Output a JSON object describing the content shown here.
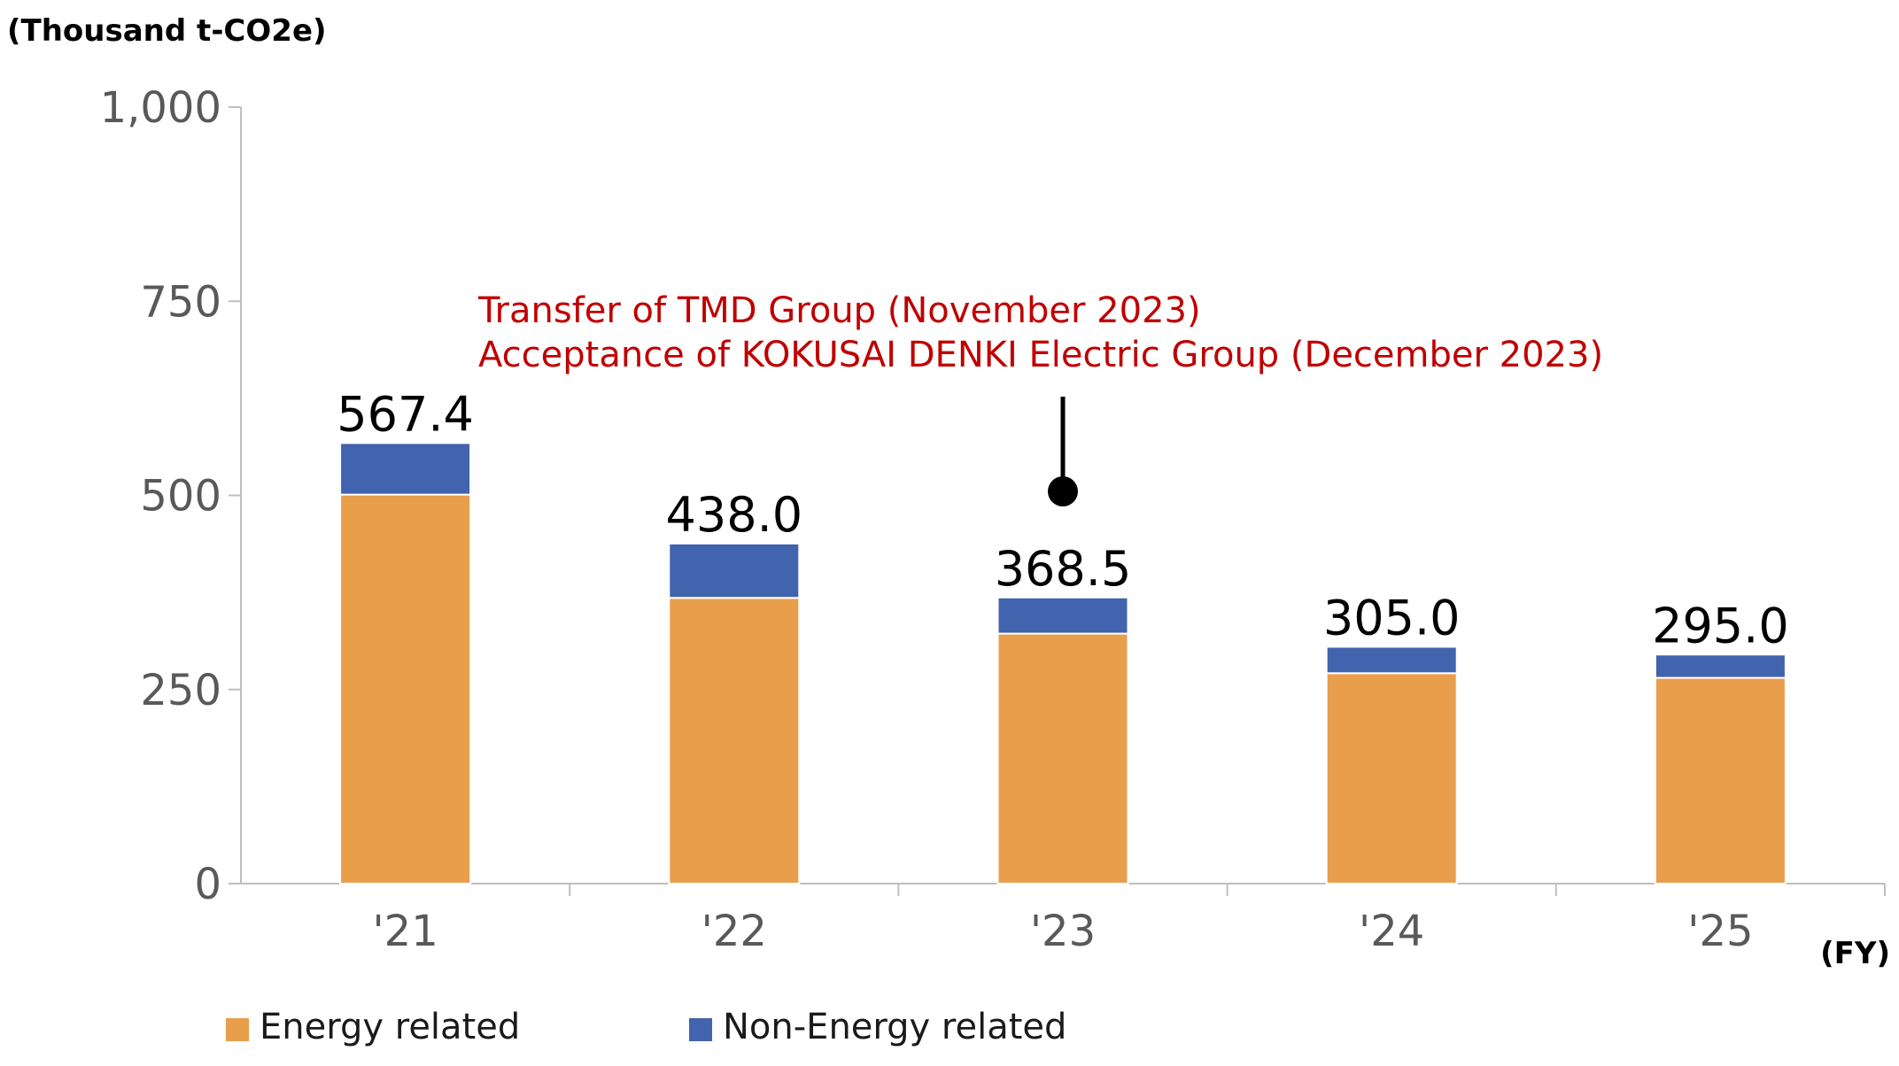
{
  "chart_data": {
    "type": "bar",
    "stacked": true,
    "unit_label": "(Thousand t-CO2e)",
    "x_unit_label": "(FY)",
    "categories": [
      "'21",
      "'22",
      "'23",
      "'24",
      "'25"
    ],
    "series": [
      {
        "name": "Energy related",
        "color": "#e99e4c",
        "values": [
          501,
          368,
          322,
          271,
          265
        ]
      },
      {
        "name": "Non-Energy related",
        "color": "#4263ad",
        "values": [
          66.4,
          70.0,
          46.5,
          34.0,
          30.0
        ]
      }
    ],
    "totals": [
      "567.4",
      "438.0",
      "368.5",
      "305.0",
      "295.0"
    ],
    "ylim": [
      0,
      1000
    ],
    "yticks": [
      0,
      250,
      500,
      750,
      1000
    ],
    "ytick_labels": [
      "0",
      "250",
      "500",
      "750",
      "1,000"
    ],
    "annotation": {
      "lines": [
        "Transfer of TMD Group (November 2023)",
        "Acceptance of KOKUSAI DENKI Electric Group (December 2023)"
      ],
      "category": "'23",
      "color": "#c00000"
    },
    "grid": false,
    "legend_position": "bottom-left"
  }
}
